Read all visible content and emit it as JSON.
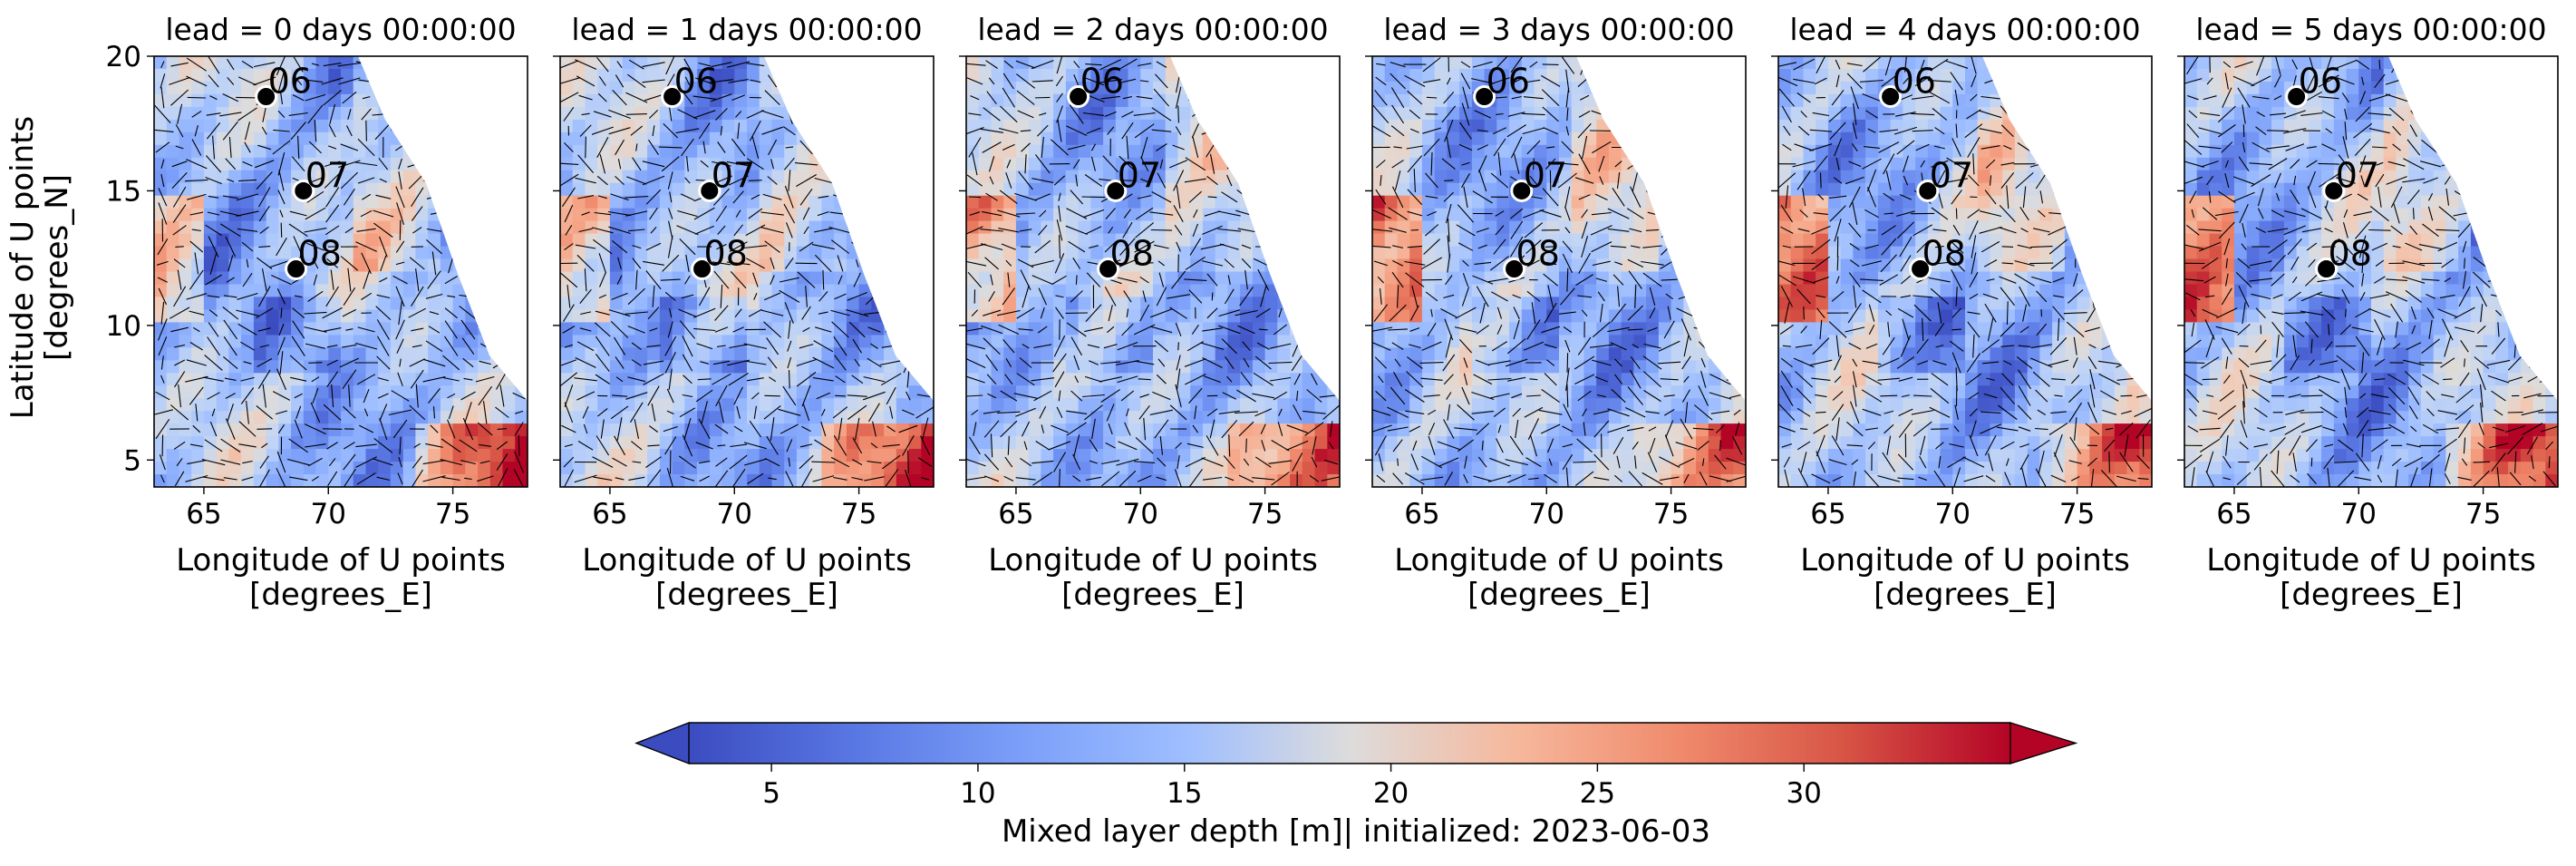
{
  "chart_data": {
    "type": "heatmap",
    "colormap": "coolwarm",
    "overlay": "quiver",
    "shared_ylabel": "Latitude of U points\n[degrees_N]",
    "xlabel": "Longitude of U points\n[degrees_E]",
    "xlim": [
      63,
      78
    ],
    "ylim": [
      4,
      20
    ],
    "xticks": [
      65,
      70,
      75
    ],
    "yticks": [
      5,
      10,
      15,
      20
    ],
    "colorbar": {
      "label": "Mixed layer depth [m]| initialized: 2023-06-03",
      "range": [
        3,
        35
      ],
      "ticks": [
        5,
        10,
        15,
        20,
        25,
        30
      ],
      "extend": "both",
      "orientation": "horizontal"
    },
    "stations": [
      {
        "label": "06",
        "lon": 67.5,
        "lat": 18.5
      },
      {
        "label": "07",
        "lon": 69.0,
        "lat": 15.0
      },
      {
        "label": "08",
        "lon": 68.7,
        "lat": 12.1
      }
    ],
    "panels": [
      {
        "title": "lead = 0 days 00:00:00"
      },
      {
        "title": "lead = 1 days 00:00:00"
      },
      {
        "title": "lead = 2 days 00:00:00"
      },
      {
        "title": "lead = 3 days 00:00:00"
      },
      {
        "title": "lead = 4 days 00:00:00"
      },
      {
        "title": "lead = 5 days 00:00:00"
      }
    ]
  }
}
